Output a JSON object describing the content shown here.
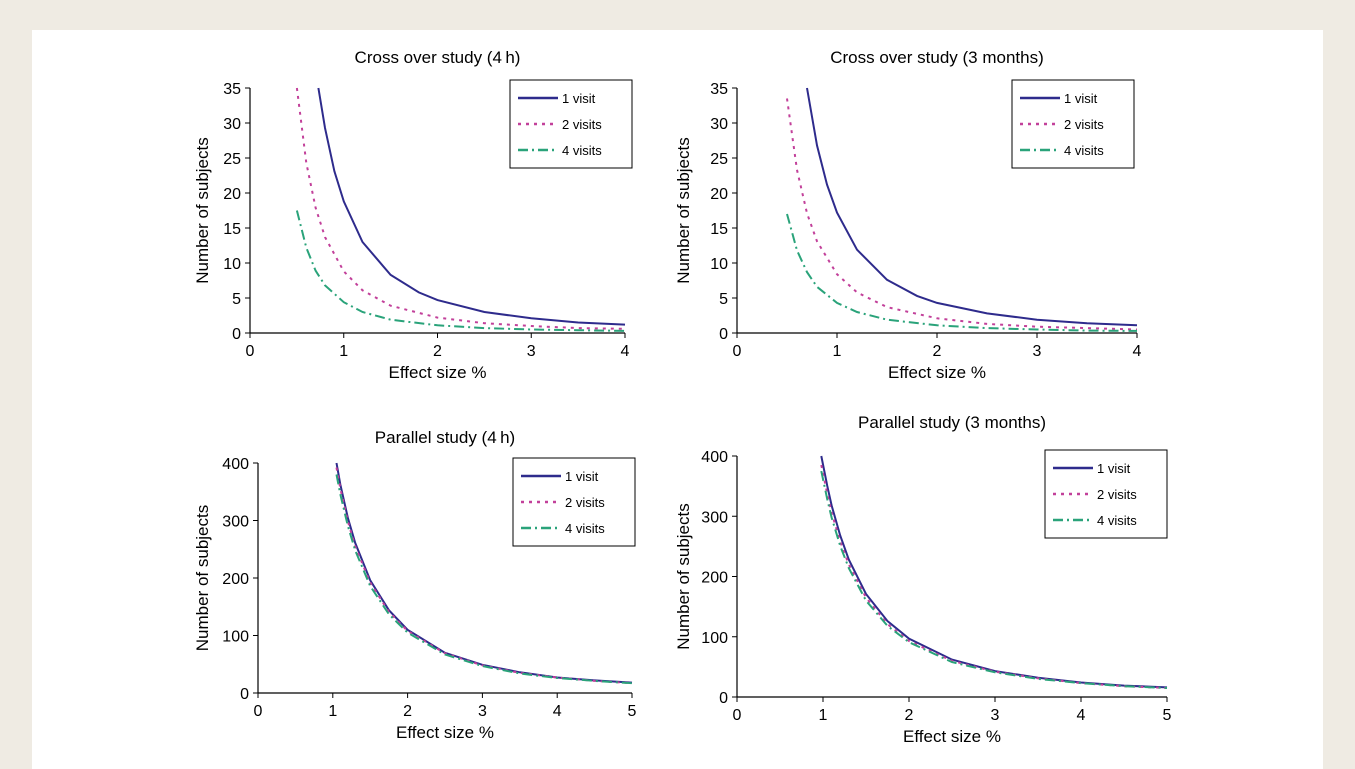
{
  "chart_data": [
    {
      "type": "line",
      "title": "Cross over study (4 h)",
      "xlabel": "Effect size %",
      "ylabel": "Number of subjects",
      "xlim": [
        0,
        4
      ],
      "ylim": [
        0,
        35
      ],
      "xticks": [
        "0",
        "1",
        "2",
        "3",
        "4"
      ],
      "yticks": [
        "0",
        "5",
        "10",
        "15",
        "20",
        "25",
        "30",
        "35"
      ],
      "legend_position": "top-right",
      "series": [
        {
          "name": "1 visit",
          "style": "solid",
          "color": "#2e2b8c",
          "x": [
            0.73,
            0.8,
            0.9,
            1.0,
            1.2,
            1.5,
            1.8,
            2.0,
            2.5,
            3.0,
            3.5,
            4.0
          ],
          "y": [
            35,
            29.3,
            23.1,
            18.8,
            13.0,
            8.3,
            5.8,
            4.7,
            3.0,
            2.1,
            1.5,
            1.2
          ]
        },
        {
          "name": "2 visits",
          "style": "dotted",
          "color": "#c2409a",
          "x": [
            0.5,
            0.6,
            0.7,
            0.8,
            1.0,
            1.2,
            1.5,
            2.0,
            2.5,
            3.0,
            3.5,
            4.0
          ],
          "y": [
            35,
            24.3,
            17.9,
            13.7,
            8.8,
            6.1,
            3.9,
            2.2,
            1.4,
            1.0,
            0.7,
            0.6
          ]
        },
        {
          "name": "4 visits",
          "style": "dash-dot",
          "color": "#2aa37a",
          "x": [
            0.5,
            0.6,
            0.7,
            0.8,
            1.0,
            1.2,
            1.5,
            2.0,
            2.5,
            3.0,
            3.5,
            4.0
          ],
          "y": [
            17.5,
            12.2,
            8.9,
            6.8,
            4.4,
            3.0,
            1.9,
            1.1,
            0.7,
            0.5,
            0.4,
            0.3
          ]
        }
      ]
    },
    {
      "type": "line",
      "title": "Cross over study (3 months)",
      "xlabel": "Effect size %",
      "ylabel": "Number of subjects",
      "xlim": [
        0,
        4
      ],
      "ylim": [
        0,
        35
      ],
      "xticks": [
        "0",
        "1",
        "2",
        "3",
        "4"
      ],
      "yticks": [
        "0",
        "5",
        "10",
        "15",
        "20",
        "25",
        "30",
        "35"
      ],
      "legend_position": "top-right",
      "series": [
        {
          "name": "1 visit",
          "style": "solid",
          "color": "#2e2b8c",
          "x": [
            0.7,
            0.8,
            0.9,
            1.0,
            1.2,
            1.5,
            1.8,
            2.0,
            2.5,
            3.0,
            3.5,
            4.0
          ],
          "y": [
            35,
            26.8,
            21.2,
            17.2,
            11.9,
            7.6,
            5.3,
            4.3,
            2.8,
            1.9,
            1.4,
            1.1
          ]
        },
        {
          "name": "2 visits",
          "style": "dotted",
          "color": "#c2409a",
          "x": [
            0.5,
            0.6,
            0.7,
            0.8,
            1.0,
            1.2,
            1.5,
            2.0,
            2.5,
            3.0,
            3.5,
            4.0
          ],
          "y": [
            33.5,
            23.3,
            17.1,
            13.1,
            8.4,
            5.8,
            3.7,
            2.1,
            1.3,
            0.9,
            0.7,
            0.5
          ]
        },
        {
          "name": "4 visits",
          "style": "dash-dot",
          "color": "#2aa37a",
          "x": [
            0.5,
            0.6,
            0.7,
            0.8,
            1.0,
            1.2,
            1.5,
            2.0,
            2.5,
            3.0,
            3.5,
            4.0
          ],
          "y": [
            17,
            11.8,
            8.7,
            6.6,
            4.3,
            3.0,
            1.9,
            1.1,
            0.7,
            0.5,
            0.35,
            0.3
          ]
        }
      ]
    },
    {
      "type": "line",
      "title": "Parallel study (4 h)",
      "xlabel": "Effect size %",
      "ylabel": "Number of subjects",
      "xlim": [
        0,
        5
      ],
      "ylim": [
        0,
        400
      ],
      "xticks": [
        "0",
        "1",
        "2",
        "3",
        "4",
        "5"
      ],
      "yticks": [
        "0",
        "100",
        "200",
        "300",
        "400"
      ],
      "legend_position": "top-right",
      "series": [
        {
          "name": "1 visit",
          "style": "solid",
          "color": "#2e2b8c",
          "x": [
            1.05,
            1.1,
            1.2,
            1.3,
            1.5,
            1.75,
            2.0,
            2.5,
            3.0,
            3.5,
            4.0,
            4.5,
            5.0
          ],
          "y": [
            400,
            363,
            305,
            261,
            196,
            144,
            110,
            70,
            49,
            36,
            27,
            22,
            18
          ]
        },
        {
          "name": "2 visits",
          "style": "dotted",
          "color": "#c2409a",
          "x": [
            1.05,
            1.1,
            1.2,
            1.3,
            1.5,
            1.75,
            2.0,
            2.5,
            3.0,
            3.5,
            4.0,
            4.5,
            5.0
          ],
          "y": [
            392,
            356,
            299,
            255,
            192,
            141,
            108,
            69,
            48,
            35,
            27,
            21,
            17
          ]
        },
        {
          "name": "4 visits",
          "style": "dash-dot",
          "color": "#2aa37a",
          "x": [
            1.05,
            1.1,
            1.2,
            1.3,
            1.5,
            1.75,
            2.0,
            2.5,
            3.0,
            3.5,
            4.0,
            4.5,
            5.0
          ],
          "y": [
            380,
            346,
            291,
            248,
            186,
            137,
            105,
            67,
            47,
            34,
            26,
            21,
            17
          ]
        }
      ]
    },
    {
      "type": "line",
      "title": "Parallel study (3 months)",
      "xlabel": "Effect size %",
      "ylabel": "Number of subjects",
      "xlim": [
        0,
        5
      ],
      "ylim": [
        0,
        400
      ],
      "xticks": [
        "0",
        "1",
        "2",
        "3",
        "4",
        "5"
      ],
      "yticks": [
        "0",
        "100",
        "200",
        "300",
        "400"
      ],
      "legend_position": "top-right",
      "series": [
        {
          "name": "1 visit",
          "style": "solid",
          "color": "#2e2b8c",
          "x": [
            0.98,
            1.05,
            1.1,
            1.2,
            1.3,
            1.5,
            1.75,
            2.0,
            2.5,
            3.0,
            3.5,
            4.0,
            4.5,
            5.0
          ],
          "y": [
            400,
            350,
            318,
            268,
            228,
            171,
            126,
            97,
            62,
            43,
            32,
            24,
            19,
            16
          ]
        },
        {
          "name": "2 visits",
          "style": "dotted",
          "color": "#c2409a",
          "x": [
            0.98,
            1.05,
            1.1,
            1.2,
            1.3,
            1.5,
            1.75,
            2.0,
            2.5,
            3.0,
            3.5,
            4.0,
            4.5,
            5.0
          ],
          "y": [
            385,
            337,
            306,
            258,
            220,
            165,
            121,
            93,
            60,
            42,
            31,
            23,
            18,
            15
          ]
        },
        {
          "name": "4 visits",
          "style": "dash-dot",
          "color": "#2aa37a",
          "x": [
            0.98,
            1.05,
            1.1,
            1.2,
            1.3,
            1.5,
            1.75,
            2.0,
            2.5,
            3.0,
            3.5,
            4.0,
            4.5,
            5.0
          ],
          "y": [
            375,
            328,
            298,
            251,
            214,
            160,
            118,
            91,
            58,
            41,
            30,
            23,
            18,
            15
          ]
        }
      ]
    }
  ]
}
